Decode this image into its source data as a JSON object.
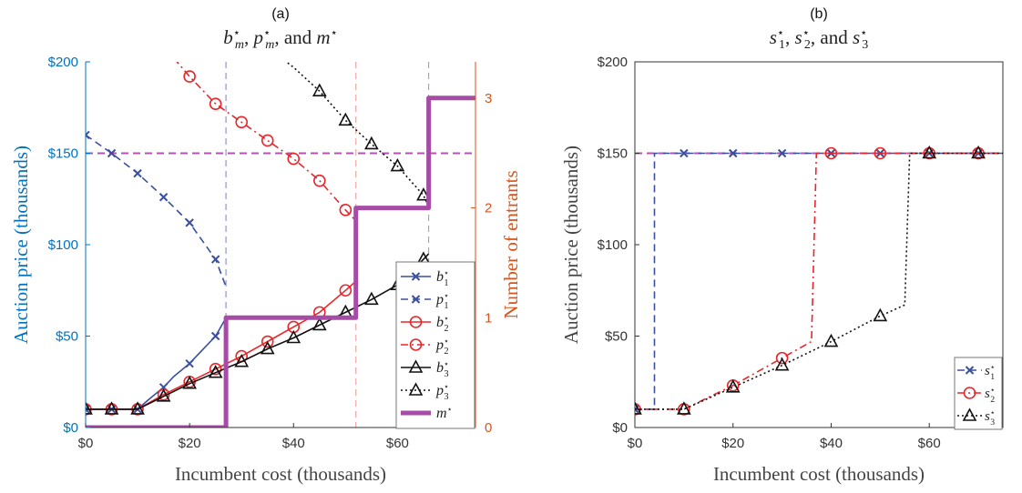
{
  "chart_data": [
    {
      "type": "line",
      "panel_label": "(a)",
      "title": "b*m, p*m, and m*",
      "title_parts": {
        "b": "b",
        "p": "p",
        "m": "m",
        "sub": "m",
        "star": "⋆",
        "sep1": ", ",
        "sep2": ", and "
      },
      "xlabel": "Incumbent cost (thousands)",
      "ylabel_left": "Auction price (thousands)",
      "ylabel_right": "Number of entrants",
      "xlim": [
        0,
        75
      ],
      "ylim_left": [
        0,
        200
      ],
      "ylim_right": [
        0,
        3.33
      ],
      "x_ticks": [
        0,
        20,
        40,
        60
      ],
      "x_tick_labels": [
        "$0",
        "$20",
        "$40",
        "$60"
      ],
      "y_left_ticks": [
        0,
        50,
        100,
        150,
        200
      ],
      "y_left_tick_labels": [
        "$0",
        "$50",
        "$100",
        "$150",
        "$200"
      ],
      "y_right_ticks": [
        0,
        1,
        2,
        3
      ],
      "y_right_tick_labels": [
        "0",
        "1",
        "2",
        "3"
      ],
      "colors": {
        "left_axis": "#0072BD",
        "right_axis": "#D95319"
      },
      "legend_position": "bottom-right",
      "reserve_price": 150,
      "thresholds": [
        27,
        52,
        66
      ],
      "series": [
        {
          "name": "b1",
          "label_base": "b",
          "label_sub": "1",
          "color": "#3A4FA0",
          "dash": "solid",
          "marker": "x",
          "axis": "left",
          "x": [
            0,
            2,
            5,
            7,
            10,
            12,
            15,
            17,
            20,
            22,
            25,
            27
          ],
          "y": [
            10,
            10,
            10,
            10,
            10,
            15,
            22,
            28,
            35,
            41,
            50,
            60
          ],
          "marker_x": [
            0,
            5,
            10,
            15,
            20,
            25
          ]
        },
        {
          "name": "p1",
          "label_base": "p",
          "label_sub": "1",
          "color": "#3A4FA0",
          "dash": "dashed",
          "marker": "x",
          "axis": "left",
          "x": [
            0,
            5,
            10,
            15,
            20,
            25,
            27
          ],
          "y": [
            160,
            150,
            139,
            126,
            112,
            92,
            77
          ],
          "marker_x": [
            0,
            5,
            10,
            15,
            20,
            25
          ]
        },
        {
          "name": "b2",
          "label_base": "b",
          "label_sub": "2",
          "color": "#E8262A",
          "dash": "solid",
          "marker": "circle",
          "axis": "left",
          "x": [
            0,
            5,
            10,
            15,
            20,
            25,
            30,
            35,
            40,
            45,
            50,
            52
          ],
          "y": [
            10,
            10,
            10,
            18,
            25,
            32,
            39,
            47,
            55,
            63,
            75,
            80
          ],
          "marker_x": [
            0,
            5,
            10,
            15,
            20,
            25,
            30,
            35,
            40,
            45,
            50
          ]
        },
        {
          "name": "p2",
          "label_base": "p",
          "label_sub": "2",
          "color": "#E8262A",
          "dash": "dashdot",
          "marker": "circle",
          "axis": "left",
          "x": [
            17,
            20,
            25,
            30,
            35,
            40,
            45,
            50,
            52
          ],
          "y": [
            202,
            192,
            177,
            167,
            157,
            147,
            135,
            119,
            113
          ],
          "marker_x": [
            20,
            25,
            30,
            35,
            40,
            45,
            50
          ]
        },
        {
          "name": "b3",
          "label_base": "b",
          "label_sub": "3",
          "color": "#111111",
          "dash": "solid",
          "marker": "triangle",
          "axis": "left",
          "x": [
            0,
            5,
            10,
            15,
            20,
            25,
            30,
            35,
            40,
            45,
            50,
            55,
            60,
            65,
            66
          ],
          "y": [
            10,
            10,
            10,
            17,
            24,
            30,
            36,
            43,
            49,
            56,
            63,
            70,
            78,
            92,
            95
          ],
          "marker_x": [
            0,
            5,
            10,
            15,
            20,
            25,
            30,
            35,
            40,
            45,
            50,
            55,
            60,
            65
          ]
        },
        {
          "name": "p3",
          "label_base": "p",
          "label_sub": "3",
          "color": "#111111",
          "dash": "dotted",
          "marker": "triangle",
          "axis": "left",
          "x": [
            34,
            40,
            45,
            50,
            55,
            60,
            65,
            66
          ],
          "y": [
            210,
            197,
            184,
            168,
            155,
            143,
            127,
            121
          ],
          "marker_x": [
            45,
            50,
            55,
            60,
            65
          ]
        },
        {
          "name": "m",
          "label_base": "m",
          "label_sub": "",
          "color": "#A64CA6",
          "dash": "solid",
          "marker": "none",
          "axis": "right",
          "width": 5,
          "step": true,
          "x": [
            0,
            27,
            27,
            52,
            52,
            66,
            66,
            75
          ],
          "y": [
            0,
            0,
            1,
            1,
            2,
            2,
            3,
            3
          ],
          "marker_x": []
        }
      ]
    },
    {
      "type": "line",
      "panel_label": "(b)",
      "title": "s*1, s*2, and s*3",
      "title_parts": {
        "s": "s",
        "star": "⋆",
        "s1": "1",
        "s2": "2",
        "s3": "3",
        "sep1": ", ",
        "sep2": ", and "
      },
      "xlabel": "Incumbent cost (thousands)",
      "ylabel": "Auction price (thousands)",
      "xlim": [
        0,
        75
      ],
      "ylim": [
        0,
        200
      ],
      "x_ticks": [
        0,
        20,
        40,
        60
      ],
      "x_tick_labels": [
        "$0",
        "$20",
        "$40",
        "$60"
      ],
      "y_ticks": [
        0,
        50,
        100,
        150,
        200
      ],
      "y_tick_labels": [
        "$0",
        "$50",
        "$100",
        "$150",
        "$200"
      ],
      "legend_position": "bottom-right",
      "reserve_price": 150,
      "series": [
        {
          "name": "s1",
          "label_base": "s",
          "label_sub": "1",
          "color": "#3A4FA0",
          "dash": "dashed",
          "marker": "x",
          "x": [
            0,
            4,
            4,
            10,
            20,
            30,
            40,
            50,
            60,
            70,
            75
          ],
          "y": [
            10,
            10,
            150,
            150,
            150,
            150,
            150,
            150,
            150,
            150,
            150
          ],
          "marker_x": [
            0,
            10,
            20,
            30,
            40,
            50,
            60,
            70
          ]
        },
        {
          "name": "s2",
          "label_base": "s",
          "label_sub": "2",
          "color": "#E8262A",
          "dash": "dashdot",
          "marker": "circle",
          "x": [
            0,
            10,
            20,
            30,
            36,
            37,
            40,
            50,
            60,
            70,
            75
          ],
          "y": [
            10,
            10,
            23,
            38,
            47,
            150,
            150,
            150,
            150,
            150,
            150
          ],
          "marker_x": [
            0,
            10,
            20,
            30,
            40,
            50,
            60,
            70
          ]
        },
        {
          "name": "s3",
          "label_base": "s",
          "label_sub": "3",
          "color": "#111111",
          "dash": "dotted",
          "marker": "triangle",
          "x": [
            0,
            10,
            20,
            30,
            40,
            50,
            55,
            56,
            60,
            70,
            75
          ],
          "y": [
            10,
            10,
            22,
            34,
            47,
            61,
            67,
            150,
            150,
            150,
            150
          ],
          "marker_x": [
            0,
            10,
            20,
            30,
            40,
            50,
            60,
            70
          ]
        }
      ]
    }
  ]
}
